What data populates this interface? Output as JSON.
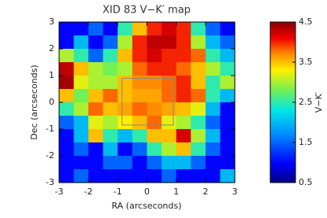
{
  "chart_data": {
    "type": "heatmap",
    "title": "XID 83  V−K′ map",
    "x_label": "RA (arcseconds)",
    "y_label": "Dec (arcseconds)",
    "xlim": [
      -3,
      3
    ],
    "ylim": [
      -3,
      3
    ],
    "xticks": [
      -3,
      -2,
      -1,
      0,
      1,
      2,
      3
    ],
    "yticks": [
      -3,
      -2,
      -1,
      0,
      1,
      2,
      3
    ],
    "box_x": [
      -0.85,
      0.9
    ],
    "box_y": [
      -0.85,
      0.9
    ],
    "values": [
      [
        1.0,
        1.0,
        1.5,
        1.0,
        2.5,
        3.5,
        4.0,
        4.2,
        4.0,
        2.5,
        1.5,
        1.0
      ],
      [
        1.0,
        2.0,
        1.0,
        1.5,
        3.0,
        4.0,
        4.3,
        4.3,
        4.0,
        3.0,
        2.0,
        1.5
      ],
      [
        3.0,
        2.5,
        1.5,
        2.5,
        3.5,
        4.0,
        4.2,
        4.0,
        4.0,
        3.8,
        2.5,
        2.0
      ],
      [
        4.3,
        3.5,
        3.0,
        2.8,
        3.0,
        3.8,
        4.0,
        4.0,
        3.8,
        3.5,
        3.0,
        2.5
      ],
      [
        4.4,
        3.2,
        3.0,
        3.0,
        3.5,
        3.7,
        3.7,
        3.8,
        4.0,
        3.5,
        2.5,
        3.0
      ],
      [
        3.5,
        2.8,
        3.5,
        3.8,
        3.5,
        3.6,
        3.6,
        3.8,
        4.0,
        3.8,
        2.5,
        2.0
      ],
      [
        2.5,
        3.0,
        3.8,
        3.5,
        3.6,
        3.8,
        3.7,
        3.6,
        3.5,
        3.2,
        2.0,
        1.0
      ],
      [
        1.5,
        2.0,
        3.2,
        3.0,
        3.3,
        3.5,
        3.8,
        3.2,
        3.0,
        2.5,
        1.5,
        1.0
      ],
      [
        1.0,
        2.0,
        3.5,
        2.5,
        2.0,
        2.5,
        3.5,
        3.5,
        4.2,
        3.0,
        2.0,
        1.0
      ],
      [
        1.0,
        1.5,
        1.0,
        2.0,
        1.0,
        1.5,
        2.5,
        3.0,
        3.5,
        2.5,
        1.5,
        1.0
      ],
      [
        1.0,
        1.0,
        1.0,
        1.5,
        1.5,
        1.0,
        1.5,
        2.0,
        2.0,
        1.5,
        1.0,
        1.0
      ],
      [
        1.0,
        1.5,
        1.0,
        1.0,
        1.0,
        1.0,
        1.0,
        1.5,
        1.0,
        1.0,
        1.0,
        2.0
      ]
    ],
    "colorbar_label": "V−K′",
    "clim": [
      0.5,
      4.5
    ],
    "colorbar_ticks": [
      0.5,
      1.5,
      2.5,
      3.5,
      4.5
    ]
  }
}
